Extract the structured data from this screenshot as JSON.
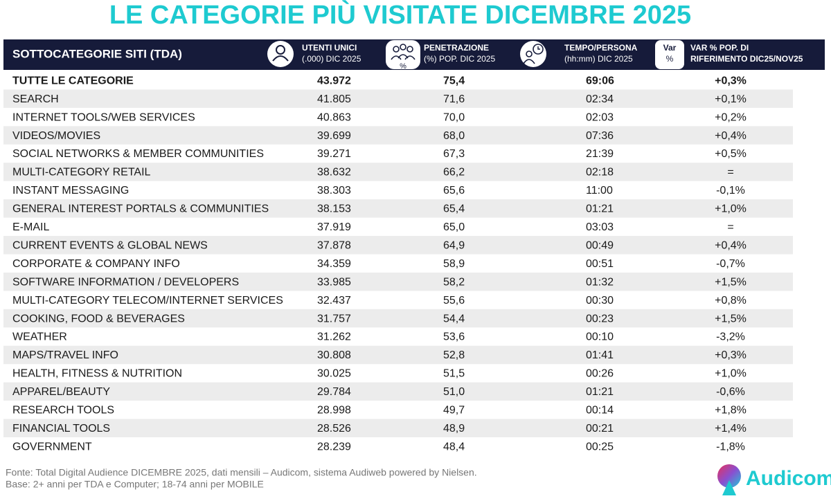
{
  "title": "LE CATEGORIE PIÙ VISITATE DICEMBRE 2025",
  "header": {
    "category": "SOTTOCATEGORIE SITI  (TDA)",
    "users": [
      "UTENTI UNICI",
      "(.000) DIC 2025"
    ],
    "penetration_icon_label": "%",
    "penetration": [
      "PENETRAZIONE",
      "(%) POP. DIC 2025"
    ],
    "time": [
      "TEMPO/PERSONA",
      "(hh:mm) DIC 2025"
    ],
    "var_box": [
      "Var",
      "%"
    ],
    "var": [
      "VAR % POP. DI",
      "RIFERIMENTO DIC25/NOV25"
    ]
  },
  "table": {
    "rows": [
      [
        "TUTTE LE CATEGORIE",
        "43.972",
        "75,4",
        "69:06",
        "+0,3%"
      ],
      [
        "SEARCH",
        "41.805",
        "71,6",
        "02:34",
        "+0,1%"
      ],
      [
        "INTERNET TOOLS/WEB SERVICES",
        "40.863",
        "70,0",
        "02:03",
        "+0,2%"
      ],
      [
        "VIDEOS/MOVIES",
        "39.699",
        "68,0",
        "07:36",
        "+0,4%"
      ],
      [
        "SOCIAL NETWORKS & MEMBER COMMUNITIES",
        "39.271",
        "67,3",
        "21:39",
        "+0,5%"
      ],
      [
        "MULTI-CATEGORY RETAIL",
        "38.632",
        "66,2",
        "02:18",
        "="
      ],
      [
        "INSTANT MESSAGING",
        "38.303",
        "65,6",
        "11:00",
        "-0,1%"
      ],
      [
        "GENERAL INTEREST PORTALS & COMMUNITIES",
        "38.153",
        "65,4",
        "01:21",
        "+1,0%"
      ],
      [
        "E-MAIL",
        "37.919",
        "65,0",
        "03:03",
        "="
      ],
      [
        "CURRENT EVENTS & GLOBAL NEWS",
        "37.878",
        "64,9",
        "00:49",
        "+0,4%"
      ],
      [
        "CORPORATE & COMPANY INFO",
        "34.359",
        "58,9",
        "00:51",
        "-0,7%"
      ],
      [
        "SOFTWARE INFORMATION / DEVELOPERS",
        "33.985",
        "58,2",
        "01:32",
        "+1,5%"
      ],
      [
        "MULTI-CATEGORY TELECOM/INTERNET SERVICES",
        "32.437",
        "55,6",
        "00:30",
        "+0,8%"
      ],
      [
        "COOKING, FOOD & BEVERAGES",
        "31.757",
        "54,4",
        "00:23",
        "+1,5%"
      ],
      [
        "WEATHER",
        "31.262",
        "53,6",
        "00:10",
        "-3,2%"
      ],
      [
        "MAPS/TRAVEL INFO",
        "30.808",
        "52,8",
        "01:41",
        "+0,3%"
      ],
      [
        "HEALTH, FITNESS & NUTRITION",
        "30.025",
        "51,5",
        "00:26",
        "+1,0%"
      ],
      [
        "APPAREL/BEAUTY",
        "29.784",
        "51,0",
        "01:21",
        "-0,6%"
      ],
      [
        "RESEARCH TOOLS",
        "28.998",
        "49,7",
        "00:14",
        "+1,8%"
      ],
      [
        "FINANCIAL TOOLS",
        "28.526",
        "48,9",
        "00:21",
        "+1,4%"
      ],
      [
        "GOVERNMENT",
        "28.239",
        "48,4",
        "00:25",
        "-1,8%"
      ]
    ]
  },
  "footer": [
    "Fonte: Total Digital Audience DICEMBRE 2025, dati mensili – Audicom, sistema Audiweb powered by Nielsen.",
    "Base: 2+ anni per TDA e Computer; 18-74 anni per MOBILE"
  ],
  "logo": "Audicom"
}
